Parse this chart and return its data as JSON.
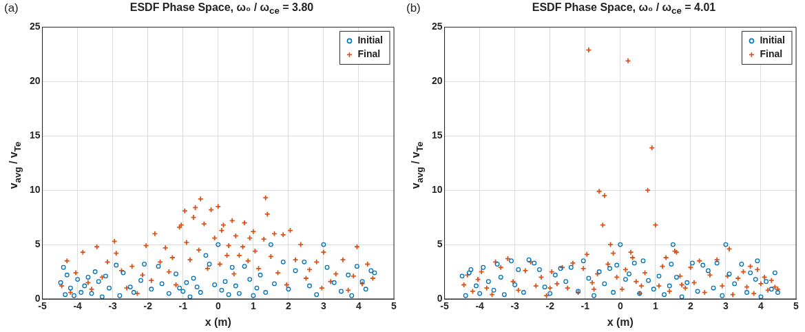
{
  "chart_data": [
    {
      "type": "scatter",
      "title": "ESDF Phase Space,  ω₀ / ω$_{ce}$ = 3.80",
      "xlabel": "x (m)",
      "ylabel": "v$_{avg}$ / v$_{Te}$",
      "annotations": [
        "(a)"
      ],
      "xlim": [
        -5,
        5
      ],
      "xticks": [
        -5,
        -4,
        -3,
        -2,
        -1,
        0,
        1,
        2,
        3,
        4,
        5
      ],
      "ylim": [
        0,
        25
      ],
      "yticks": [
        0,
        5,
        10,
        15,
        20,
        25
      ],
      "grid": true,
      "legend": "top right",
      "series": [
        {
          "name": "Initial",
          "color": "#0072bd",
          "marker": "circle",
          "x": [
            -4.48,
            -4.4,
            -4.35,
            -4.3,
            -4.2,
            -4.1,
            -4.0,
            -3.9,
            -3.8,
            -3.7,
            -3.6,
            -3.5,
            -3.4,
            -3.3,
            -3.2,
            -3.1,
            -2.9,
            -2.8,
            -2.7,
            -2.5,
            -2.4,
            -2.2,
            -2.1,
            -1.9,
            -1.7,
            -1.6,
            -1.4,
            -1.2,
            -1.1,
            -1.0,
            -0.9,
            -0.8,
            -0.7,
            -0.6,
            -0.5,
            -0.35,
            -0.25,
            -0.1,
            0,
            0.1,
            0.2,
            0.3,
            0.4,
            0.5,
            0.6,
            0.75,
            0.9,
            1.0,
            1.1,
            1.2,
            1.35,
            1.5,
            1.6,
            1.85,
            2.0,
            2.2,
            2.45,
            2.6,
            2.8,
            3.0,
            3.1,
            3.3,
            3.5,
            3.7,
            3.8,
            3.95,
            4.1,
            4.2,
            4.35,
            4.45
          ],
          "values": [
            1.5,
            2.9,
            0.4,
            2.2,
            1.0,
            0.3,
            1.8,
            0.6,
            1.2,
            2.0,
            0.5,
            2.5,
            1.6,
            0.2,
            2.1,
            1.0,
            3.1,
            0.3,
            2.4,
            1.1,
            0.6,
            1.7,
            3.2,
            0.9,
            3.0,
            1.4,
            0.5,
            2.3,
            1.0,
            0.7,
            1.5,
            0.2,
            1.9,
            1.1,
            0.6,
            4.0,
            3.2,
            1.3,
            5.0,
            0.8,
            1.6,
            0.4,
            2.9,
            1.2,
            0.5,
            3.0,
            1.8,
            0.3,
            1.0,
            2.2,
            0.6,
            5.0,
            1.4,
            3.4,
            0.9,
            2.6,
            3.4,
            1.2,
            0.4,
            5.0,
            2.9,
            1.5,
            0.7,
            2.2,
            0.3,
            3.0,
            1.6,
            0.9,
            2.6,
            2.4
          ]
        },
        {
          "name": "Final",
          "color": "#d95319",
          "marker": "cross",
          "x": [
            -4.45,
            -4.3,
            -4.2,
            -4.05,
            -3.85,
            -3.7,
            -3.6,
            -3.45,
            -3.3,
            -3.15,
            -2.95,
            -2.9,
            -2.75,
            -2.6,
            -2.45,
            -2.3,
            -2.15,
            -2.05,
            -1.9,
            -1.8,
            -1.65,
            -1.5,
            -1.4,
            -1.3,
            -1.2,
            -1.1,
            -1.05,
            -0.95,
            -0.9,
            -0.8,
            -0.7,
            -0.65,
            -0.55,
            -0.5,
            -0.4,
            -0.3,
            -0.2,
            -0.1,
            0,
            0.05,
            0.1,
            0.15,
            0.25,
            0.3,
            0.4,
            0.45,
            0.5,
            0.6,
            0.7,
            0.75,
            0.85,
            0.9,
            1.0,
            1.05,
            1.15,
            1.3,
            1.35,
            1.4,
            1.5,
            1.6,
            1.7,
            1.85,
            1.95,
            2.05,
            2.2,
            2.35,
            2.5,
            2.6,
            2.8,
            2.95,
            3.0,
            3.2,
            3.35,
            3.55,
            3.7,
            3.85,
            3.95,
            4.1,
            4.25,
            4.4
          ],
          "values": [
            1.2,
            3.5,
            0.6,
            2.4,
            4.3,
            1.5,
            0.9,
            4.8,
            2.0,
            3.4,
            5.3,
            4.2,
            2.6,
            1.0,
            3.0,
            0.5,
            2.2,
            4.9,
            1.7,
            6.0,
            3.4,
            4.7,
            2.5,
            3.8,
            1.3,
            6.6,
            6.8,
            8.1,
            5.2,
            3.6,
            7.5,
            8.4,
            4.5,
            9.2,
            6.9,
            2.8,
            8.2,
            5.6,
            8.5,
            3.2,
            6.3,
            6.8,
            4.0,
            4.9,
            7.2,
            2.3,
            5.8,
            4.0,
            4.8,
            7.0,
            3.5,
            5.6,
            6.2,
            4.4,
            2.8,
            5.5,
            9.3,
            7.8,
            3.9,
            6.0,
            2.4,
            5.9,
            1.3,
            6.3,
            3.6,
            5.0,
            1.9,
            2.7,
            3.4,
            1.0,
            4.3,
            1.6,
            2.3,
            3.6,
            0.8,
            2.1,
            4.8,
            1.4,
            3.2,
            1.9
          ]
        }
      ]
    },
    {
      "type": "scatter",
      "title": "ESDF Phase Space,  ω₀ / ω$_{ce}$ = 4.01",
      "xlabel": "x (m)",
      "ylabel": "v$_{avg}$ / v$_{Te}$",
      "annotations": [
        "(b)"
      ],
      "xlim": [
        -5,
        5
      ],
      "xticks": [
        -5,
        -4,
        -3,
        -2,
        -1,
        0,
        1,
        2,
        3,
        4,
        5
      ],
      "ylim": [
        0,
        25
      ],
      "yticks": [
        0,
        5,
        10,
        15,
        20,
        25
      ],
      "grid": true,
      "legend": "top right",
      "series": [
        {
          "name": "Initial",
          "color": "#0072bd",
          "marker": "circle",
          "x": [
            -4.5,
            -4.4,
            -4.3,
            -4.25,
            -4.1,
            -4.0,
            -3.9,
            -3.75,
            -3.6,
            -3.5,
            -3.4,
            -3.3,
            -3.1,
            -3.0,
            -2.9,
            -2.75,
            -2.6,
            -2.45,
            -2.3,
            -2.15,
            -2.0,
            -1.85,
            -1.7,
            -1.55,
            -1.4,
            -1.2,
            -1.05,
            -0.9,
            -0.75,
            -0.6,
            -0.45,
            -0.3,
            -0.2,
            -0.1,
            0,
            0.15,
            0.25,
            0.4,
            0.55,
            0.65,
            0.8,
            0.95,
            1.1,
            1.25,
            1.4,
            1.45,
            1.5,
            1.6,
            1.75,
            1.9,
            2.05,
            2.2,
            2.35,
            2.5,
            2.65,
            2.75,
            2.9,
            3.0,
            3.1,
            3.25,
            3.45,
            3.6,
            3.7,
            3.85,
            3.9,
            4.0,
            4.15,
            4.3,
            4.4,
            4.48
          ],
          "values": [
            2.1,
            0.3,
            2.4,
            2.7,
            1.2,
            0.5,
            2.9,
            1.6,
            0.8,
            3.2,
            2.0,
            0.4,
            3.5,
            1.3,
            2.7,
            0.6,
            3.6,
            3.3,
            2.7,
            1.1,
            0.5,
            2.2,
            2.8,
            1.6,
            2.9,
            0.7,
            3.5,
            1.9,
            0.3,
            2.5,
            1.4,
            2.8,
            0.6,
            3.1,
            5.0,
            1.8,
            2.3,
            3.3,
            0.5,
            3.5,
            1.7,
            0.9,
            2.1,
            0.4,
            1.2,
            3.2,
            5.0,
            2.0,
            0.2,
            1.5,
            3.3,
            0.7,
            3.1,
            2.6,
            1.0,
            3.3,
            0.3,
            5.0,
            2.3,
            1.4,
            3.2,
            0.6,
            2.4,
            1.8,
            3.5,
            0.2,
            1.6,
            0.9,
            2.4,
            0.6
          ]
        },
        {
          "name": "Final",
          "color": "#d95319",
          "marker": "cross",
          "x": [
            -4.45,
            -4.35,
            -4.2,
            -4.05,
            -3.95,
            -3.8,
            -3.65,
            -3.55,
            -3.4,
            -3.2,
            -3.05,
            -2.9,
            -2.7,
            -2.55,
            -2.4,
            -2.25,
            -2.1,
            -1.95,
            -1.8,
            -1.65,
            -1.5,
            -1.35,
            -1.2,
            -1.05,
            -0.95,
            -0.9,
            -0.8,
            -0.65,
            -0.6,
            -0.5,
            -0.45,
            -0.35,
            -0.28,
            -0.2,
            -0.1,
            0.05,
            0.15,
            0.22,
            0.3,
            0.35,
            0.45,
            0.55,
            0.7,
            0.78,
            0.9,
            1.0,
            1.1,
            1.2,
            1.3,
            1.4,
            1.55,
            1.6,
            1.7,
            1.85,
            2.0,
            2.1,
            2.25,
            2.4,
            2.55,
            2.75,
            2.9,
            3.05,
            3.1,
            3.2,
            3.35,
            3.5,
            3.6,
            3.7,
            3.8,
            3.9,
            4.0,
            4.1,
            4.2,
            4.3,
            4.4,
            4.48,
            -2.0,
            -0.75,
            0.6,
            1.75
          ],
          "values": [
            1.3,
            2.2,
            0.7,
            1.8,
            2.5,
            1.0,
            0.4,
            3.4,
            2.9,
            3.7,
            1.6,
            0.8,
            2.6,
            3.4,
            1.2,
            2.0,
            0.3,
            2.5,
            1.4,
            2.9,
            1.0,
            3.3,
            0.6,
            2.8,
            4.1,
            22.9,
            1.5,
            2.3,
            9.9,
            6.8,
            9.5,
            3.2,
            5.0,
            4.2,
            2.0,
            0.9,
            2.7,
            21.9,
            4.3,
            3.8,
            1.6,
            0.5,
            2.4,
            10.0,
            13.9,
            6.8,
            1.2,
            3.0,
            3.8,
            0.7,
            4.4,
            4.3,
            2.1,
            1.0,
            2.9,
            1.5,
            3.5,
            0.6,
            2.2,
            3.6,
            1.2,
            2.1,
            4.6,
            0.4,
            1.9,
            2.5,
            1.1,
            3.0,
            0.5,
            2.7,
            1.4,
            2.0,
            0.8,
            1.7,
            1.1,
            0.9,
            1.0,
            0.9,
            1.2,
            1.3
          ]
        }
      ]
    }
  ]
}
